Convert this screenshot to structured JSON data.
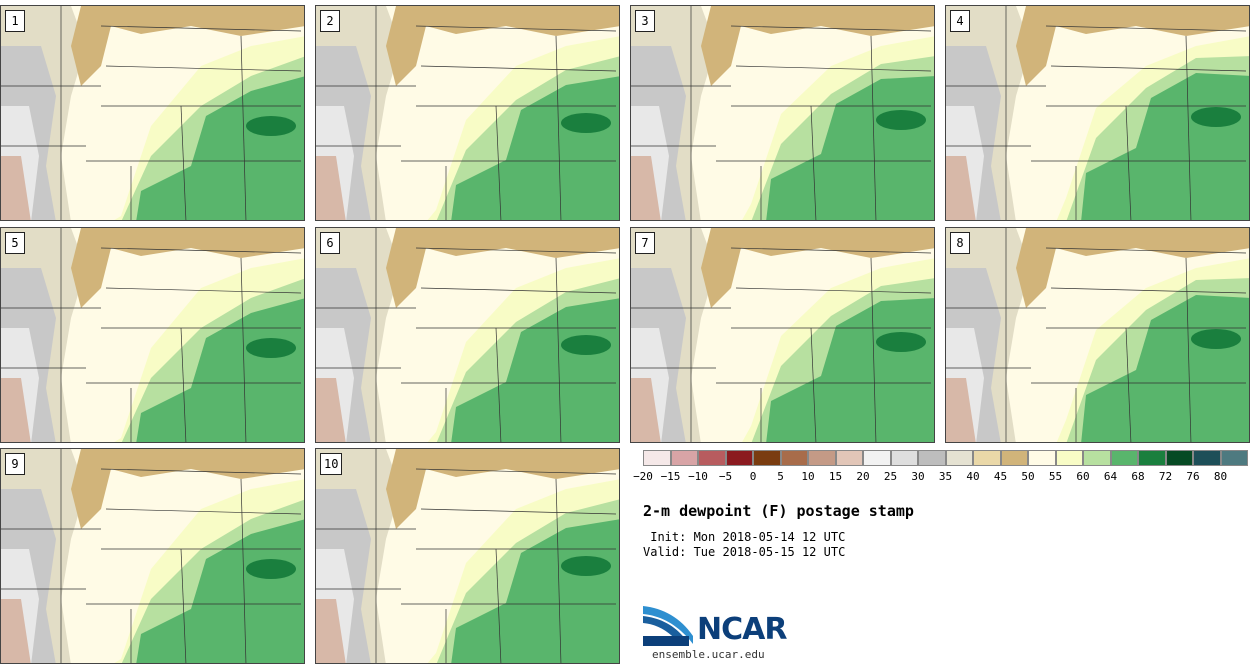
{
  "panels": [
    {
      "label": "1"
    },
    {
      "label": "2"
    },
    {
      "label": "3"
    },
    {
      "label": "4"
    },
    {
      "label": "5"
    },
    {
      "label": "6"
    },
    {
      "label": "7"
    },
    {
      "label": "8"
    },
    {
      "label": "9"
    },
    {
      "label": "10"
    }
  ],
  "colorbar": {
    "colors": [
      "#f5e8e8",
      "#d8a4a6",
      "#b85c5f",
      "#8b1a1f",
      "#7a3c10",
      "#a86c4a",
      "#c49a86",
      "#e2c6b8",
      "#f2f2f2",
      "#dedede",
      "#bdbdbd",
      "#e5e2d2",
      "#ead8a8",
      "#d1b47a",
      "#fffbe6",
      "#f8fcc6",
      "#b7e0a0",
      "#59b56c",
      "#1a7f3e",
      "#064a24",
      "#1d4f58",
      "#4e7a80"
    ],
    "ticks": [
      "−20",
      "−15",
      "−10",
      "−5",
      "0",
      "5",
      "10",
      "15",
      "20",
      "25",
      "30",
      "35",
      "40",
      "45",
      "50",
      "55",
      "60",
      "64",
      "68",
      "72",
      "76",
      "80"
    ]
  },
  "title": "2-m dewpoint (F) postage stamp",
  "init": " Init: Mon 2018-05-14 12 UTC",
  "valid": "Valid: Tue 2018-05-15 12 UTC",
  "logo": "NCAR",
  "url": "ensemble.ucar.edu"
}
